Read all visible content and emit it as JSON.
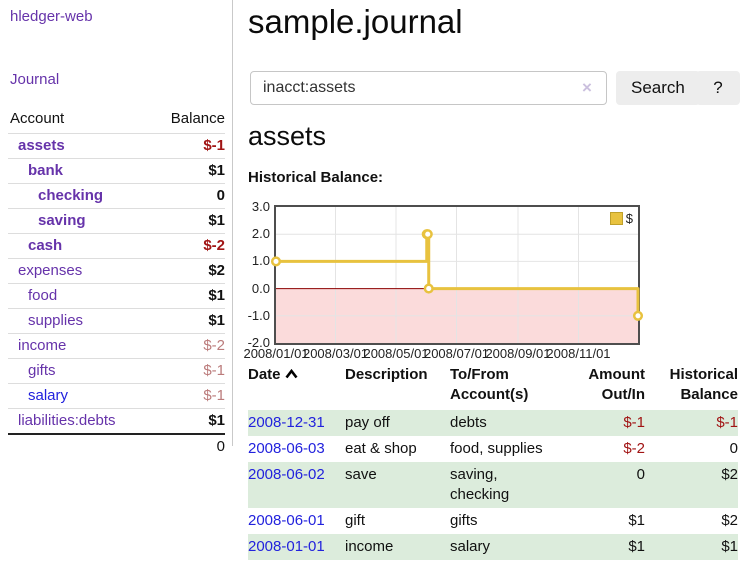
{
  "sidebar": {
    "brand": "hledger-web",
    "nav_journal": "Journal",
    "accounts_table": {
      "header_account": "Account",
      "header_balance": "Balance",
      "rows": [
        {
          "name": "assets",
          "balance": "$-1"
        },
        {
          "name": "bank",
          "balance": "$1"
        },
        {
          "name": "checking",
          "balance": "0"
        },
        {
          "name": "saving",
          "balance": "$1"
        },
        {
          "name": "cash",
          "balance": "$-2"
        },
        {
          "name": "expenses",
          "balance": "$2"
        },
        {
          "name": "food",
          "balance": "$1"
        },
        {
          "name": "supplies",
          "balance": "$1"
        },
        {
          "name": "income",
          "balance": "$-2"
        },
        {
          "name": "gifts",
          "balance": "$-1"
        },
        {
          "name": "salary",
          "balance": "$-1"
        },
        {
          "name": "liabilities:debts",
          "balance": "$1"
        }
      ],
      "total": "0"
    }
  },
  "header": {
    "title": "sample.journal"
  },
  "search": {
    "value": "inacct:assets",
    "button_label": "Search",
    "help_label": "?"
  },
  "account_page": {
    "heading": "assets",
    "chart_label": "Historical Balance:"
  },
  "chart_data": {
    "type": "line",
    "step": true,
    "title": "Historical Balance:",
    "x_start": "2008-01-01",
    "x_end": "2008-12-31",
    "ylim": [
      -2,
      3
    ],
    "y_ticks": [
      "3.0",
      "2.0",
      "1.0",
      "0.0",
      "-1.0",
      "-2.0"
    ],
    "x_ticks": [
      "2008/01/01",
      "2008/03/01",
      "2008/05/01",
      "2008/07/01",
      "2008/09/01",
      "2008/11/01"
    ],
    "series": [
      {
        "name": "$",
        "color": "#e8c23f",
        "points": [
          [
            "2008-01-01",
            1
          ],
          [
            "2008-06-01",
            2
          ],
          [
            "2008-06-02",
            2
          ],
          [
            "2008-06-03",
            0
          ],
          [
            "2008-12-31",
            -1
          ]
        ]
      }
    ],
    "negative_fill": "#fbdbdb",
    "zero_line_color": "#8b0000",
    "grid_color": "#e4e4e4",
    "legend": {
      "label": "$",
      "position": "top-right"
    }
  },
  "register_table": {
    "headers": {
      "date": "Date",
      "description": "Description",
      "accounts": "To/From Account(s)",
      "amount": "Amount Out/In",
      "balance": "Historical Balance"
    },
    "rows": [
      {
        "date": "2008-12-31",
        "description": "pay off",
        "accounts": "debts",
        "amount": "$-1",
        "balance": "$-1"
      },
      {
        "date": "2008-06-03",
        "description": "eat & shop",
        "accounts": "food, supplies",
        "amount": "$-2",
        "balance": "0"
      },
      {
        "date": "2008-06-02",
        "description": "save",
        "accounts": "saving,\nchecking",
        "amount": "0",
        "balance": "$2"
      },
      {
        "date": "2008-06-01",
        "description": "gift",
        "accounts": "gifts",
        "amount": "$1",
        "balance": "$2"
      },
      {
        "date": "2008-01-01",
        "description": "income",
        "accounts": "salary",
        "amount": "$1",
        "balance": "$1"
      }
    ]
  }
}
